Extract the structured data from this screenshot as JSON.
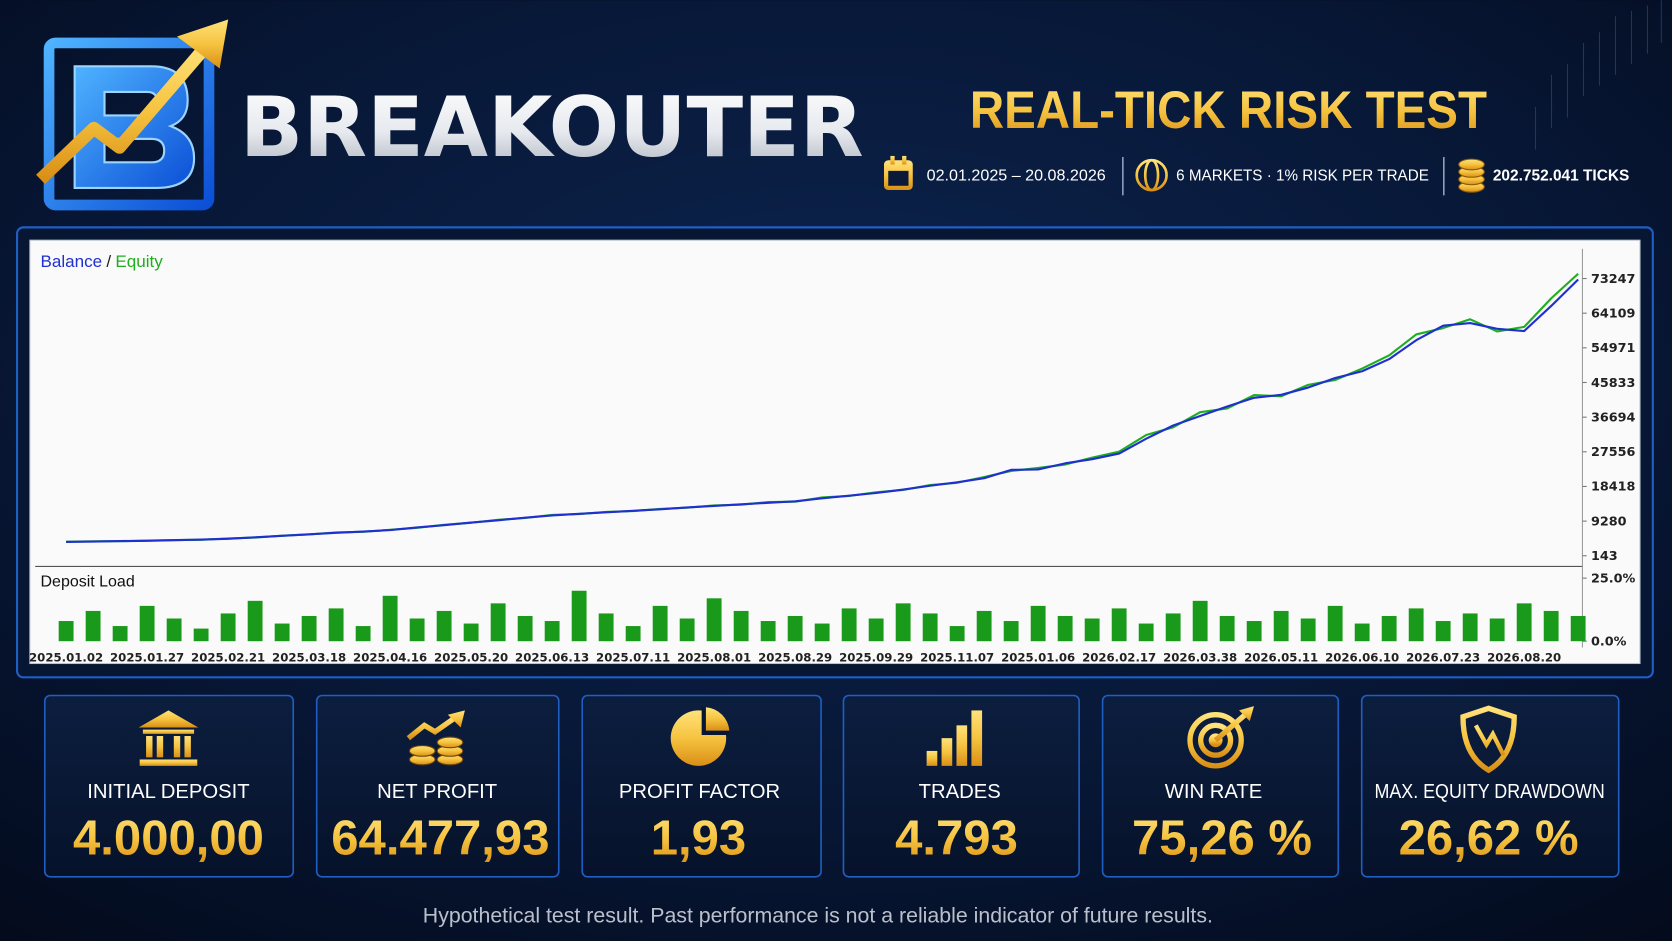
{
  "header": {
    "brand": "BREAKOUTER",
    "title": "REAL-TICK RISK TEST",
    "info": [
      "02.01.2025 – 20.08.2026",
      "6 MARKETS · 1% RISK PER TRADE",
      "202.752.041 TICKS"
    ]
  },
  "chart_data": {
    "type": "line",
    "legend_separator": "/",
    "categories": [
      "2025.01.02",
      null,
      null,
      "2025.01.27",
      null,
      null,
      "2025.02.21",
      null,
      null,
      "2025.03.18",
      null,
      null,
      "2025.04.16",
      null,
      null,
      "2025.05.20",
      null,
      null,
      "2025.06.13",
      null,
      null,
      "2025.07.11",
      null,
      null,
      "2025.08.01",
      null,
      null,
      "2025.08.29",
      null,
      null,
      "2025.09.29",
      null,
      null,
      "2025.11.07",
      null,
      null,
      "2025.01.06",
      null,
      null,
      "2026.02.17",
      null,
      null,
      "2026.03.38",
      null,
      null,
      "2026.05.11",
      null,
      null,
      "2026.06.10",
      null,
      null,
      "2026.07.23",
      null,
      null,
      "2026.08.20",
      null,
      null
    ],
    "series": [
      {
        "name": "Balance",
        "color": "#1f2fd0",
        "values": [
          3800,
          3900,
          4000,
          4100,
          4250,
          4400,
          4600,
          5000,
          5400,
          5800,
          6200,
          6500,
          6900,
          7600,
          8200,
          8900,
          9500,
          10200,
          10800,
          11200,
          11600,
          12000,
          12400,
          12900,
          13300,
          13700,
          14100,
          14500,
          15300,
          16000,
          16700,
          17600,
          18600,
          19500,
          20600,
          22800,
          22900,
          24500,
          25600,
          27100,
          31000,
          34500,
          37000,
          39500,
          41800,
          42600,
          44500,
          47000,
          48800,
          52000,
          57000,
          60800,
          61500,
          60000,
          59400,
          66000,
          73000
        ]
      },
      {
        "name": "Equity",
        "color": "#1fae1f",
        "values": [
          3850,
          3950,
          3980,
          4150,
          4300,
          4350,
          4700,
          4950,
          5450,
          5750,
          6300,
          6450,
          7000,
          7500,
          8300,
          8850,
          9600,
          10100,
          10900,
          11150,
          11700,
          11950,
          12500,
          12800,
          13400,
          13600,
          14300,
          14400,
          15500,
          15900,
          16900,
          17500,
          18800,
          19400,
          20900,
          22500,
          23300,
          24200,
          26000,
          27600,
          32000,
          34000,
          38000,
          39000,
          42500,
          42200,
          45200,
          46500,
          49500,
          53000,
          58500,
          60200,
          62500,
          59300,
          60500,
          68000,
          74500
        ]
      },
      {
        "name": "Deposit Load",
        "color": "#1a9a1a",
        "axis": "y2",
        "type": "bar",
        "values": [
          8,
          12,
          6,
          14,
          9,
          5,
          11,
          16,
          7,
          10,
          13,
          6,
          18,
          9,
          12,
          7,
          15,
          10,
          8,
          20,
          11,
          6,
          14,
          9,
          17,
          12,
          8,
          10,
          7,
          13,
          9,
          15,
          11,
          6,
          12,
          8,
          14,
          10,
          9,
          13,
          7,
          11,
          16,
          10,
          8,
          12,
          9,
          14,
          7,
          10,
          13,
          8,
          11,
          9,
          15,
          12,
          10
        ]
      }
    ],
    "ylim": [
      -2400,
      80550
    ],
    "yticks": [
      143,
      9280,
      18418,
      27556,
      36694,
      45833,
      54971,
      64109,
      73247
    ],
    "y2lim": [
      -2.5,
      29.2
    ],
    "y2ticks": [
      {
        "value": 25,
        "label": "25.0%"
      },
      {
        "value": 0,
        "label": "0.0%"
      }
    ]
  },
  "stats": [
    {
      "label": "INITIAL DEPOSIT",
      "value": "4.000,00"
    },
    {
      "label": "NET PROFIT",
      "value": "64.477,93"
    },
    {
      "label": "PROFIT FACTOR",
      "value": "1,93"
    },
    {
      "label": "TRADES",
      "value": "4.793"
    },
    {
      "label": "WIN RATE",
      "value": "75,26 %"
    },
    {
      "label": "MAX. EQUITY DRAWDOWN",
      "value": "26,62 %"
    }
  ],
  "footer": "Hypothetical test result. Past performance is not a reliable indicator of future results."
}
